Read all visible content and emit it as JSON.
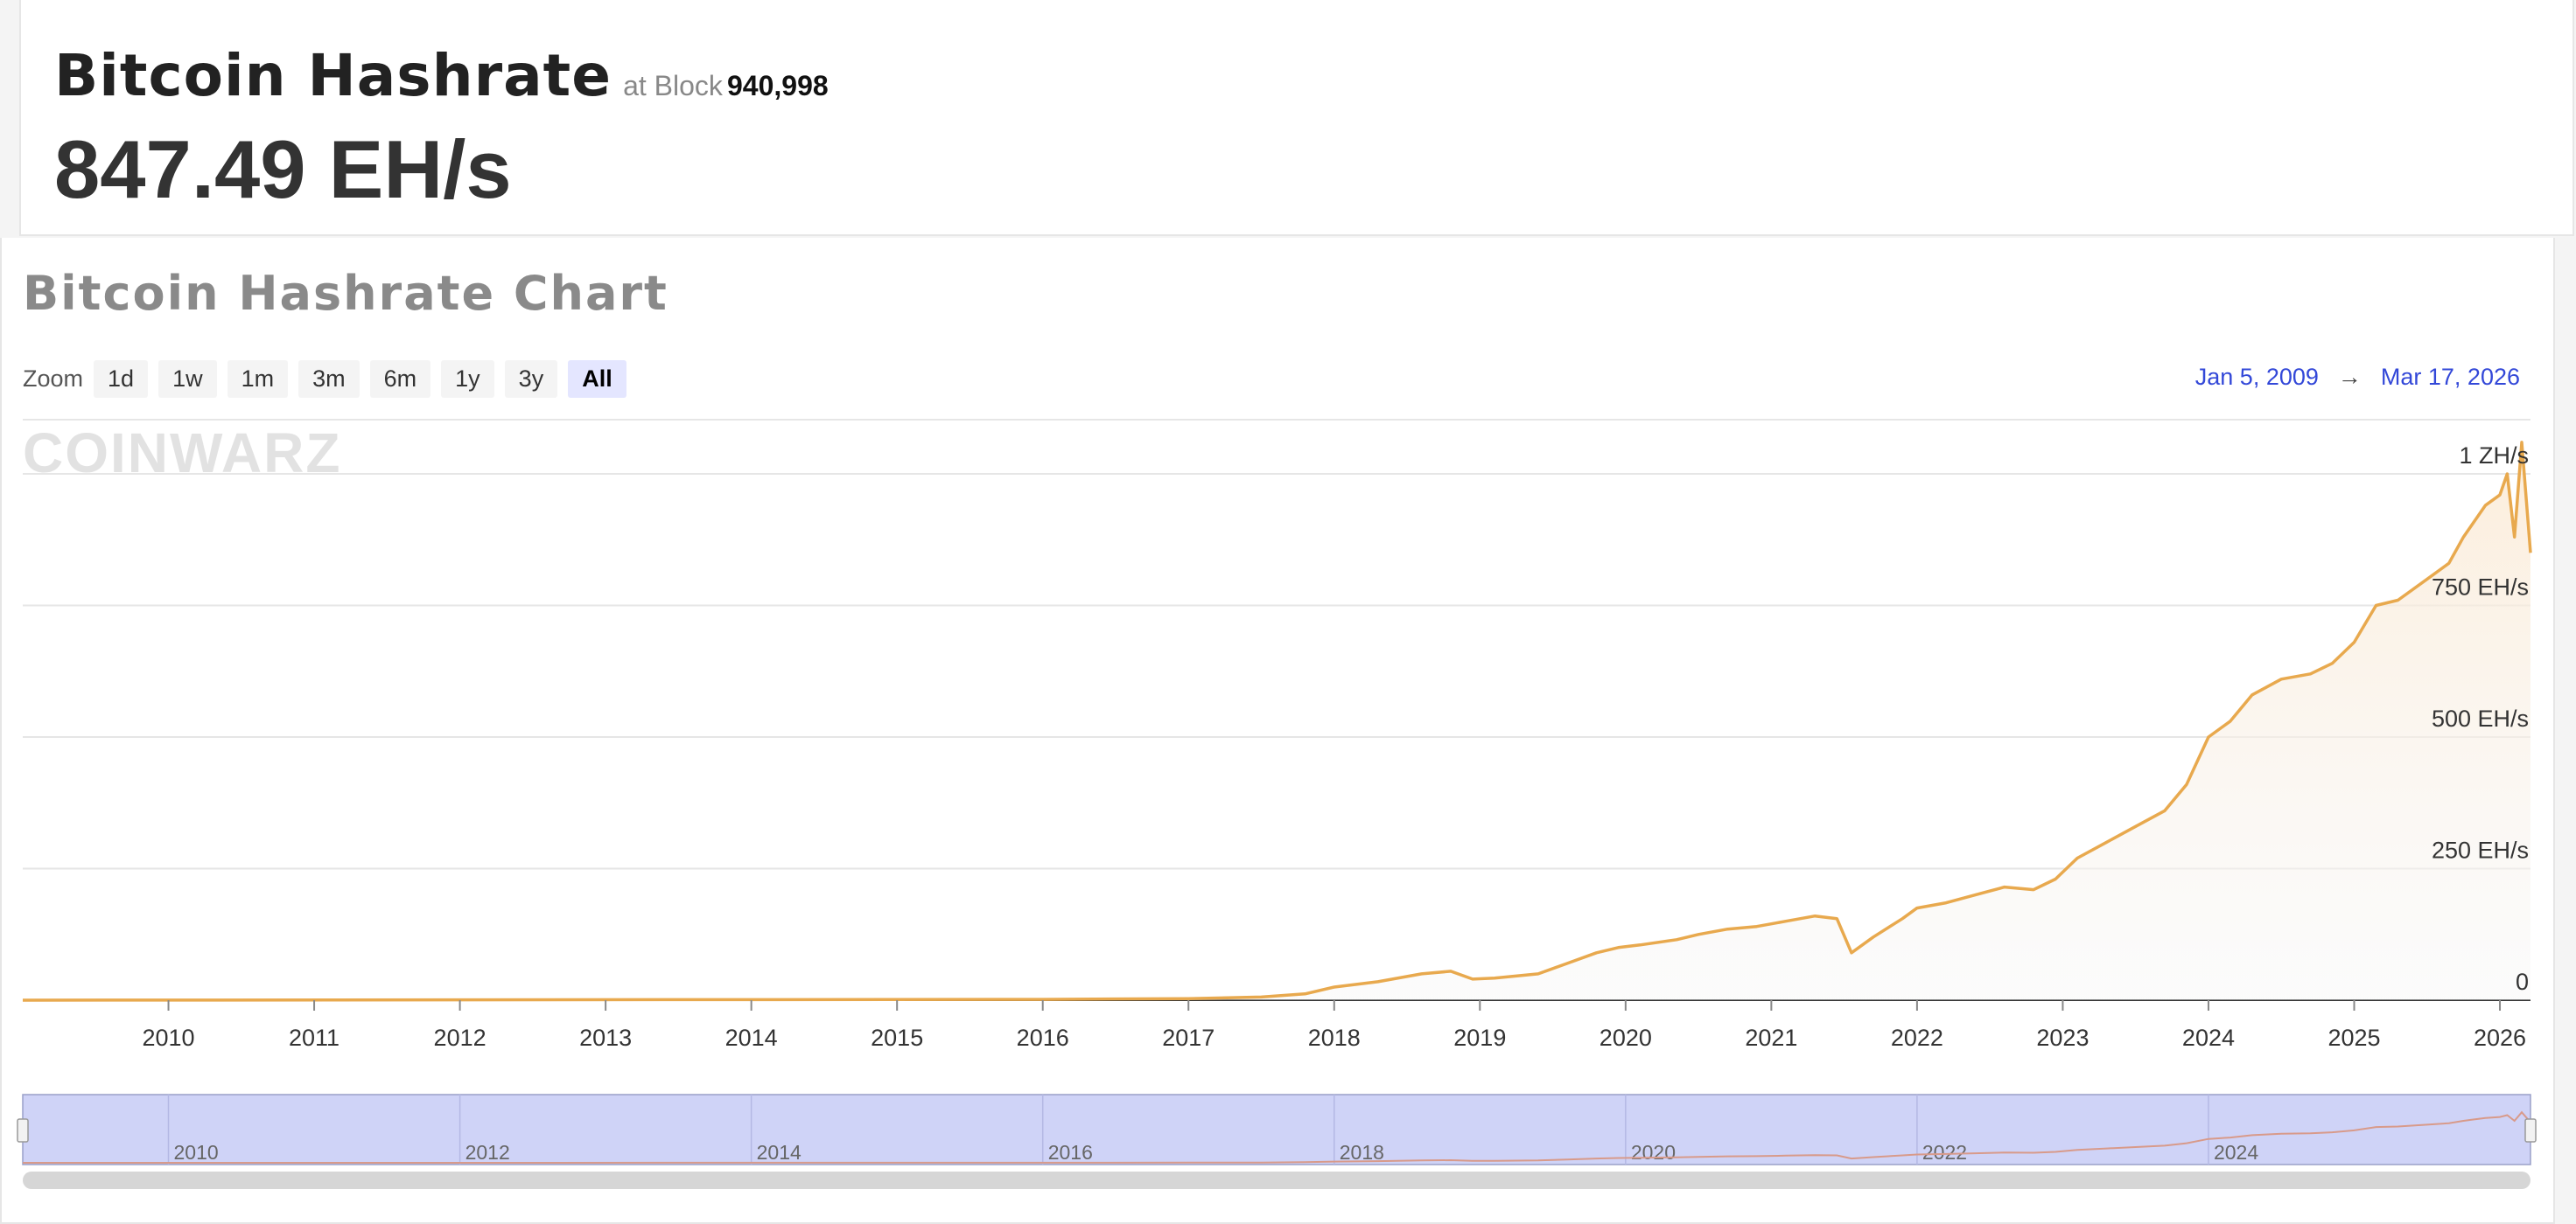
{
  "header": {
    "title": "Bitcoin Hashrate",
    "at_block_label": "at Block",
    "block_number": "940,998",
    "current_rate": "847.49 EH/s"
  },
  "chart": {
    "title": "Bitcoin Hashrate Chart",
    "zoom_label": "Zoom",
    "zoom_buttons": [
      "1d",
      "1w",
      "1m",
      "3m",
      "6m",
      "1y",
      "3y",
      "All"
    ],
    "zoom_active": "All",
    "range_from": "Jan 5, 2009",
    "range_arrow": "→",
    "range_to": "Mar 17, 2026",
    "watermark": "COINWARZ"
  },
  "colors": {
    "line": "#e8a94e",
    "navigator_fill": "#cfd3f7",
    "range_text": "#3348d8"
  },
  "chart_data": {
    "type": "area",
    "title": "Bitcoin Hashrate Chart",
    "xlabel": "",
    "ylabel": "",
    "unit": "EH/s",
    "xlim": [
      2009.0,
      2026.21
    ],
    "ylim": [
      0,
      1000
    ],
    "y_ticks": [
      0,
      250,
      500,
      750,
      1000
    ],
    "y_tick_labels": [
      "0",
      "250 EH/s",
      "500 EH/s",
      "750 EH/s",
      "1 ZH/s"
    ],
    "x_ticks": [
      "2010",
      "2011",
      "2012",
      "2013",
      "2014",
      "2015",
      "2016",
      "2017",
      "2018",
      "2019",
      "2020",
      "2021",
      "2022",
      "2023",
      "2024",
      "2025",
      "2026"
    ],
    "navigator_ticks": [
      "2010",
      "2012",
      "2014",
      "2016",
      "2018",
      "2020",
      "2022",
      "2024"
    ],
    "grid": true,
    "legend": "none",
    "series": [
      {
        "x": [
          2009.0,
          2016.0,
          2017.0,
          2017.5,
          2017.8,
          2018.0,
          2018.3,
          2018.6,
          2018.8,
          2018.95,
          2019.1,
          2019.4,
          2019.6,
          2019.8,
          2019.95,
          2020.1,
          2020.35,
          2020.5,
          2020.7,
          2020.9,
          2021.0,
          2021.1,
          2021.3,
          2021.45,
          2021.55,
          2021.7,
          2021.9,
          2022.0,
          2022.2,
          2022.4,
          2022.6,
          2022.8,
          2022.95,
          2023.1,
          2023.3,
          2023.5,
          2023.7,
          2023.85,
          2024.0,
          2024.15,
          2024.3,
          2024.5,
          2024.7,
          2024.85,
          2025.0,
          2025.15,
          2025.3,
          2025.5,
          2025.65,
          2025.75,
          2025.8,
          2025.9,
          2026.0,
          2026.05,
          2026.1,
          2026.15,
          2026.21
        ],
        "y": [
          0,
          1.5,
          3,
          6,
          12,
          25,
          35,
          50,
          55,
          40,
          42,
          50,
          70,
          90,
          100,
          105,
          115,
          125,
          135,
          140,
          145,
          150,
          160,
          155,
          90,
          120,
          155,
          175,
          185,
          200,
          215,
          210,
          230,
          270,
          300,
          330,
          360,
          410,
          500,
          530,
          580,
          610,
          620,
          640,
          680,
          750,
          760,
          800,
          830,
          880,
          900,
          940,
          960,
          1000,
          880,
          1060,
          850
        ]
      }
    ]
  }
}
